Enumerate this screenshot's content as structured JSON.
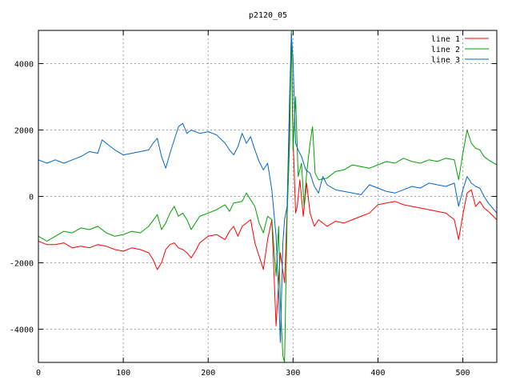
{
  "chart_data": {
    "type": "line",
    "title": "p2120_05",
    "xlabel": "",
    "ylabel": "",
    "xlim": [
      0,
      540
    ],
    "ylim": [
      -5000,
      5000
    ],
    "xticks": [
      0,
      100,
      200,
      300,
      400,
      500
    ],
    "yticks": [
      -4000,
      -2000,
      0,
      2000,
      4000
    ],
    "grid": true,
    "legend_position": "top-right",
    "series": [
      {
        "name": "line 1",
        "color": "#ff0000",
        "points": [
          [
            0,
            -1350
          ],
          [
            10,
            -1450
          ],
          [
            20,
            -1450
          ],
          [
            30,
            -1400
          ],
          [
            40,
            -1550
          ],
          [
            50,
            -1500
          ],
          [
            60,
            -1550
          ],
          [
            70,
            -1450
          ],
          [
            80,
            -1500
          ],
          [
            90,
            -1600
          ],
          [
            100,
            -1650
          ],
          [
            110,
            -1550
          ],
          [
            120,
            -1600
          ],
          [
            130,
            -1700
          ],
          [
            135,
            -1900
          ],
          [
            140,
            -2200
          ],
          [
            145,
            -2000
          ],
          [
            150,
            -1600
          ],
          [
            155,
            -1450
          ],
          [
            160,
            -1400
          ],
          [
            165,
            -1550
          ],
          [
            170,
            -1600
          ],
          [
            175,
            -1700
          ],
          [
            180,
            -1850
          ],
          [
            185,
            -1650
          ],
          [
            190,
            -1400
          ],
          [
            200,
            -1200
          ],
          [
            210,
            -1150
          ],
          [
            220,
            -1300
          ],
          [
            225,
            -1050
          ],
          [
            230,
            -900
          ],
          [
            235,
            -1200
          ],
          [
            240,
            -900
          ],
          [
            250,
            -700
          ],
          [
            255,
            -1400
          ],
          [
            260,
            -1800
          ],
          [
            265,
            -2200
          ],
          [
            270,
            -1300
          ],
          [
            275,
            -700
          ],
          [
            280,
            -3900
          ],
          [
            285,
            -1700
          ],
          [
            290,
            -2600
          ],
          [
            295,
            1000
          ],
          [
            298,
            4900
          ],
          [
            300,
            1800
          ],
          [
            303,
            -500
          ],
          [
            305,
            -300
          ],
          [
            308,
            500
          ],
          [
            312,
            -600
          ],
          [
            316,
            400
          ],
          [
            320,
            -500
          ],
          [
            325,
            -900
          ],
          [
            330,
            -700
          ],
          [
            340,
            -900
          ],
          [
            350,
            -750
          ],
          [
            360,
            -800
          ],
          [
            370,
            -700
          ],
          [
            380,
            -600
          ],
          [
            390,
            -500
          ],
          [
            400,
            -250
          ],
          [
            410,
            -200
          ],
          [
            420,
            -150
          ],
          [
            430,
            -250
          ],
          [
            440,
            -300
          ],
          [
            450,
            -350
          ],
          [
            460,
            -400
          ],
          [
            470,
            -450
          ],
          [
            480,
            -500
          ],
          [
            490,
            -700
          ],
          [
            495,
            -1300
          ],
          [
            500,
            -550
          ],
          [
            505,
            100
          ],
          [
            510,
            200
          ],
          [
            515,
            -300
          ],
          [
            520,
            -150
          ],
          [
            525,
            -350
          ],
          [
            530,
            -450
          ],
          [
            540,
            -700
          ]
        ]
      },
      {
        "name": "line 2",
        "color": "#00a000",
        "points": [
          [
            0,
            -1200
          ],
          [
            10,
            -1350
          ],
          [
            20,
            -1200
          ],
          [
            30,
            -1050
          ],
          [
            40,
            -1100
          ],
          [
            50,
            -950
          ],
          [
            60,
            -1000
          ],
          [
            70,
            -900
          ],
          [
            80,
            -1100
          ],
          [
            90,
            -1200
          ],
          [
            100,
            -1150
          ],
          [
            110,
            -1050
          ],
          [
            120,
            -1100
          ],
          [
            130,
            -900
          ],
          [
            140,
            -550
          ],
          [
            145,
            -1000
          ],
          [
            150,
            -800
          ],
          [
            155,
            -500
          ],
          [
            160,
            -300
          ],
          [
            165,
            -600
          ],
          [
            170,
            -500
          ],
          [
            175,
            -700
          ],
          [
            180,
            -1000
          ],
          [
            185,
            -800
          ],
          [
            190,
            -600
          ],
          [
            200,
            -500
          ],
          [
            210,
            -400
          ],
          [
            220,
            -250
          ],
          [
            225,
            -450
          ],
          [
            230,
            -200
          ],
          [
            240,
            -150
          ],
          [
            245,
            100
          ],
          [
            250,
            -100
          ],
          [
            255,
            -300
          ],
          [
            260,
            -800
          ],
          [
            265,
            -1100
          ],
          [
            270,
            -600
          ],
          [
            275,
            -700
          ],
          [
            280,
            -2400
          ],
          [
            283,
            -900
          ],
          [
            285,
            -3200
          ],
          [
            288,
            -4800
          ],
          [
            290,
            -5000
          ],
          [
            293,
            -600
          ],
          [
            296,
            1700
          ],
          [
            298,
            5000
          ],
          [
            300,
            1400
          ],
          [
            303,
            3000
          ],
          [
            306,
            600
          ],
          [
            310,
            1000
          ],
          [
            313,
            -300
          ],
          [
            316,
            700
          ],
          [
            320,
            1600
          ],
          [
            323,
            2100
          ],
          [
            326,
            700
          ],
          [
            330,
            500
          ],
          [
            340,
            550
          ],
          [
            350,
            750
          ],
          [
            360,
            800
          ],
          [
            370,
            950
          ],
          [
            380,
            900
          ],
          [
            390,
            850
          ],
          [
            400,
            950
          ],
          [
            410,
            1050
          ],
          [
            420,
            1000
          ],
          [
            430,
            1150
          ],
          [
            440,
            1050
          ],
          [
            450,
            1000
          ],
          [
            460,
            1100
          ],
          [
            470,
            1050
          ],
          [
            480,
            1150
          ],
          [
            490,
            1100
          ],
          [
            495,
            500
          ],
          [
            500,
            1300
          ],
          [
            505,
            2000
          ],
          [
            510,
            1600
          ],
          [
            515,
            1450
          ],
          [
            520,
            1400
          ],
          [
            525,
            1200
          ],
          [
            530,
            1100
          ],
          [
            540,
            950
          ]
        ]
      },
      {
        "name": "line 3",
        "color": "#0066cc",
        "points": [
          [
            0,
            1100
          ],
          [
            10,
            1000
          ],
          [
            20,
            1100
          ],
          [
            30,
            1000
          ],
          [
            40,
            1100
          ],
          [
            50,
            1200
          ],
          [
            60,
            1350
          ],
          [
            70,
            1300
          ],
          [
            75,
            1700
          ],
          [
            80,
            1600
          ],
          [
            90,
            1400
          ],
          [
            100,
            1250
          ],
          [
            110,
            1300
          ],
          [
            120,
            1350
          ],
          [
            130,
            1400
          ],
          [
            135,
            1600
          ],
          [
            140,
            1750
          ],
          [
            145,
            1200
          ],
          [
            150,
            850
          ],
          [
            155,
            1300
          ],
          [
            160,
            1700
          ],
          [
            165,
            2100
          ],
          [
            170,
            2200
          ],
          [
            175,
            1900
          ],
          [
            180,
            2000
          ],
          [
            190,
            1900
          ],
          [
            200,
            1950
          ],
          [
            210,
            1850
          ],
          [
            220,
            1600
          ],
          [
            225,
            1400
          ],
          [
            230,
            1250
          ],
          [
            235,
            1500
          ],
          [
            240,
            1900
          ],
          [
            245,
            1600
          ],
          [
            250,
            1800
          ],
          [
            255,
            1400
          ],
          [
            260,
            1050
          ],
          [
            265,
            800
          ],
          [
            270,
            1000
          ],
          [
            275,
            200
          ],
          [
            280,
            -1200
          ],
          [
            283,
            -2900
          ],
          [
            285,
            -4400
          ],
          [
            288,
            -1400
          ],
          [
            290,
            -700
          ],
          [
            293,
            -300
          ],
          [
            296,
            3100
          ],
          [
            298,
            4900
          ],
          [
            300,
            4100
          ],
          [
            303,
            1600
          ],
          [
            306,
            1400
          ],
          [
            310,
            1200
          ],
          [
            315,
            800
          ],
          [
            320,
            700
          ],
          [
            325,
            300
          ],
          [
            330,
            100
          ],
          [
            335,
            600
          ],
          [
            340,
            350
          ],
          [
            350,
            200
          ],
          [
            360,
            150
          ],
          [
            370,
            100
          ],
          [
            380,
            50
          ],
          [
            390,
            350
          ],
          [
            400,
            250
          ],
          [
            410,
            150
          ],
          [
            420,
            100
          ],
          [
            430,
            200
          ],
          [
            440,
            300
          ],
          [
            450,
            250
          ],
          [
            460,
            400
          ],
          [
            470,
            350
          ],
          [
            480,
            300
          ],
          [
            490,
            400
          ],
          [
            495,
            -300
          ],
          [
            500,
            200
          ],
          [
            505,
            600
          ],
          [
            510,
            400
          ],
          [
            515,
            300
          ],
          [
            520,
            250
          ],
          [
            525,
            0
          ],
          [
            530,
            -200
          ],
          [
            540,
            -500
          ]
        ]
      }
    ]
  }
}
